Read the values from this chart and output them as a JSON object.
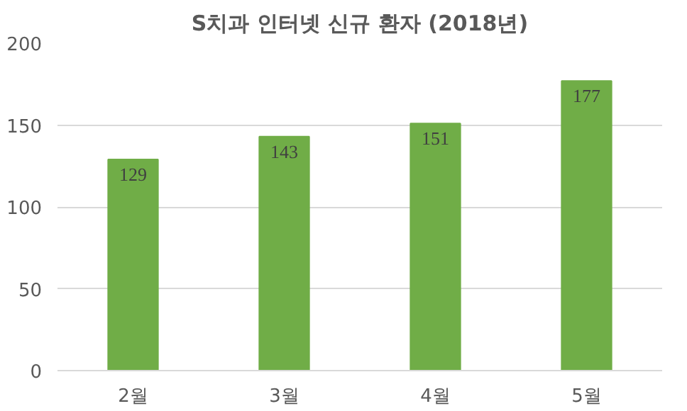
{
  "chart_data": {
    "type": "bar",
    "title": "S치과 인터넷 신규 환자 (2018년)",
    "categories": [
      "2월",
      "3월",
      "4월",
      "5월"
    ],
    "values": [
      129,
      143,
      151,
      177
    ],
    "color": "#70ad47",
    "ylim": [
      0,
      200
    ],
    "yticks": [
      0,
      50,
      100,
      150,
      200
    ],
    "grid": "y",
    "data_labels": true
  }
}
